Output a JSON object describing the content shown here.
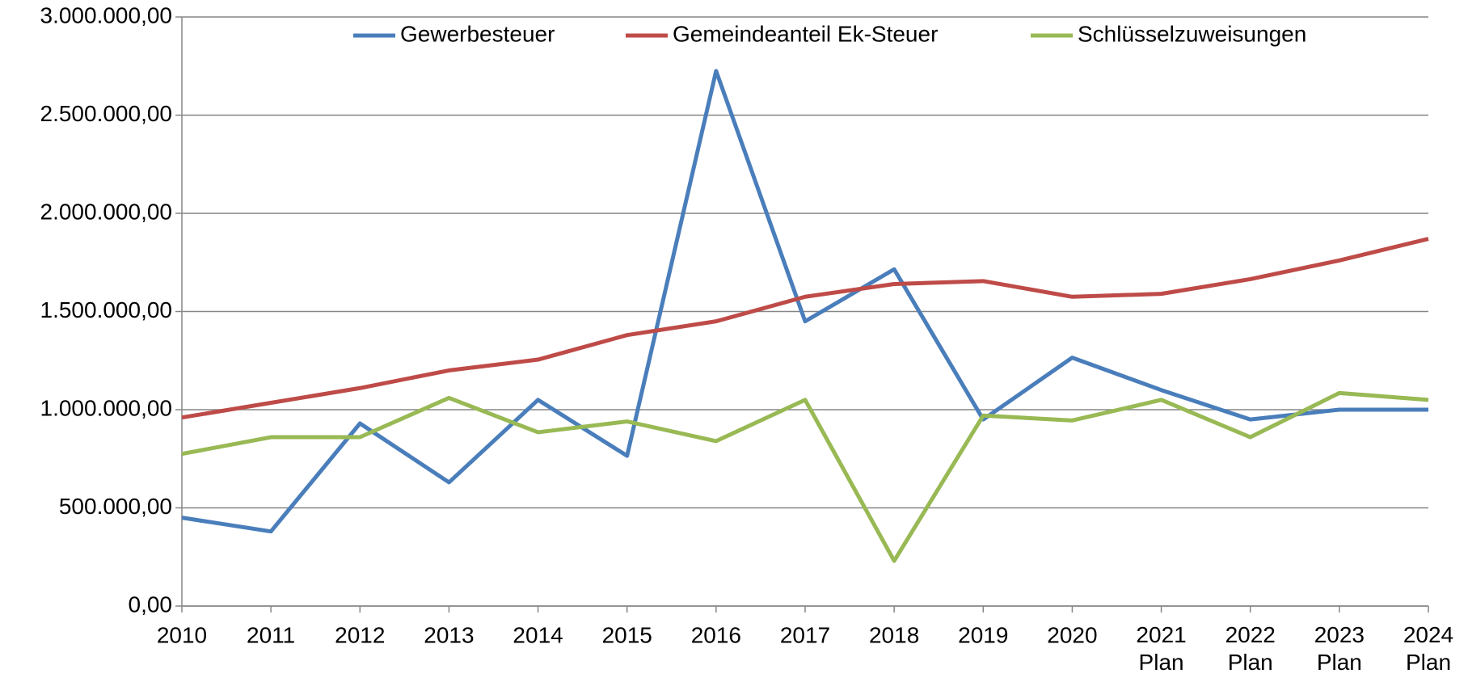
{
  "chart_data": {
    "type": "line",
    "categories": [
      "2010",
      "2011",
      "2012",
      "2013",
      "2014",
      "2015",
      "2016",
      "2017",
      "2018",
      "2019",
      "2020",
      "2021 Plan",
      "2022 Plan",
      "2023 Plan",
      "2024 Plan"
    ],
    "series": [
      {
        "name": "Gewerbesteuer",
        "color": "#4a7ebb",
        "values": [
          450000,
          380000,
          930000,
          630000,
          1050000,
          765000,
          2725000,
          1450000,
          1715000,
          950000,
          1265000,
          1100000,
          950000,
          1000000,
          1000000
        ]
      },
      {
        "name": "Gemeindeanteil Ek-Steuer",
        "color": "#be4b48",
        "values": [
          960000,
          1035000,
          1110000,
          1200000,
          1255000,
          1380000,
          1450000,
          1575000,
          1640000,
          1655000,
          1575000,
          1590000,
          1665000,
          1760000,
          1870000
        ]
      },
      {
        "name": "Schlüsselzuweisungen",
        "color": "#98b954",
        "values": [
          775000,
          860000,
          860000,
          1060000,
          885000,
          940000,
          840000,
          1050000,
          230000,
          970000,
          945000,
          1050000,
          860000,
          1085000,
          1050000
        ]
      }
    ],
    "ylim": [
      0,
      3000000
    ],
    "yticks": [
      {
        "value": 0,
        "label": "0,00"
      },
      {
        "value": 500000,
        "label": "500.000,00"
      },
      {
        "value": 1000000,
        "label": "1.000.000,00"
      },
      {
        "value": 1500000,
        "label": "1.500.000,00"
      },
      {
        "value": 2000000,
        "label": "2.000.000,00"
      },
      {
        "value": 2500000,
        "label": "2.500.000,00"
      },
      {
        "value": 3000000,
        "label": "3.000.000,00"
      }
    ],
    "grid": true,
    "legend": "top"
  }
}
